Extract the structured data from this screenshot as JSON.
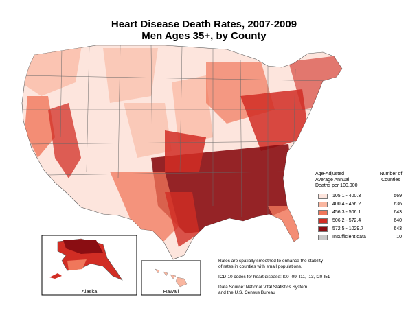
{
  "title": {
    "line1": "Heart Disease Death Rates, 2007-2009",
    "line2": "Men Ages 35+, by County"
  },
  "legend": {
    "heading_lines": [
      "Age-Adjusted",
      "Average Annual",
      "Deaths per 100,000"
    ],
    "count_heading_lines": [
      "Number of",
      "Counties"
    ],
    "classes": [
      {
        "range": "105.1 - 400.3",
        "count": "569",
        "color": "#fde5dd"
      },
      {
        "range": "400.4 - 456.2",
        "count": "636",
        "color": "#f9b6a0"
      },
      {
        "range": "456.3 - 506.1",
        "count": "643",
        "color": "#f0775b"
      },
      {
        "range": "506.2 - 572.4",
        "count": "640",
        "color": "#d12d24"
      },
      {
        "range": "572.5 - 1029.7",
        "count": "643",
        "color": "#8a0d12"
      },
      {
        "range": "Insufficient data",
        "count": "10",
        "color": "#c8c8c8"
      }
    ]
  },
  "insets": {
    "alaska": "Alaska",
    "hawaii": "Hawaii"
  },
  "notes": {
    "smoothing_lines": [
      "Rates are spatially smoothed to enhance the stability",
      "of rates in counties with small populations."
    ],
    "icd": "ICD-10 codes for heart disease: I00-I09, I11, I13, I20-I51",
    "source_lines": [
      "Data Source: National Vital Statistics System",
      "and the U.S. Census Bureau"
    ]
  }
}
